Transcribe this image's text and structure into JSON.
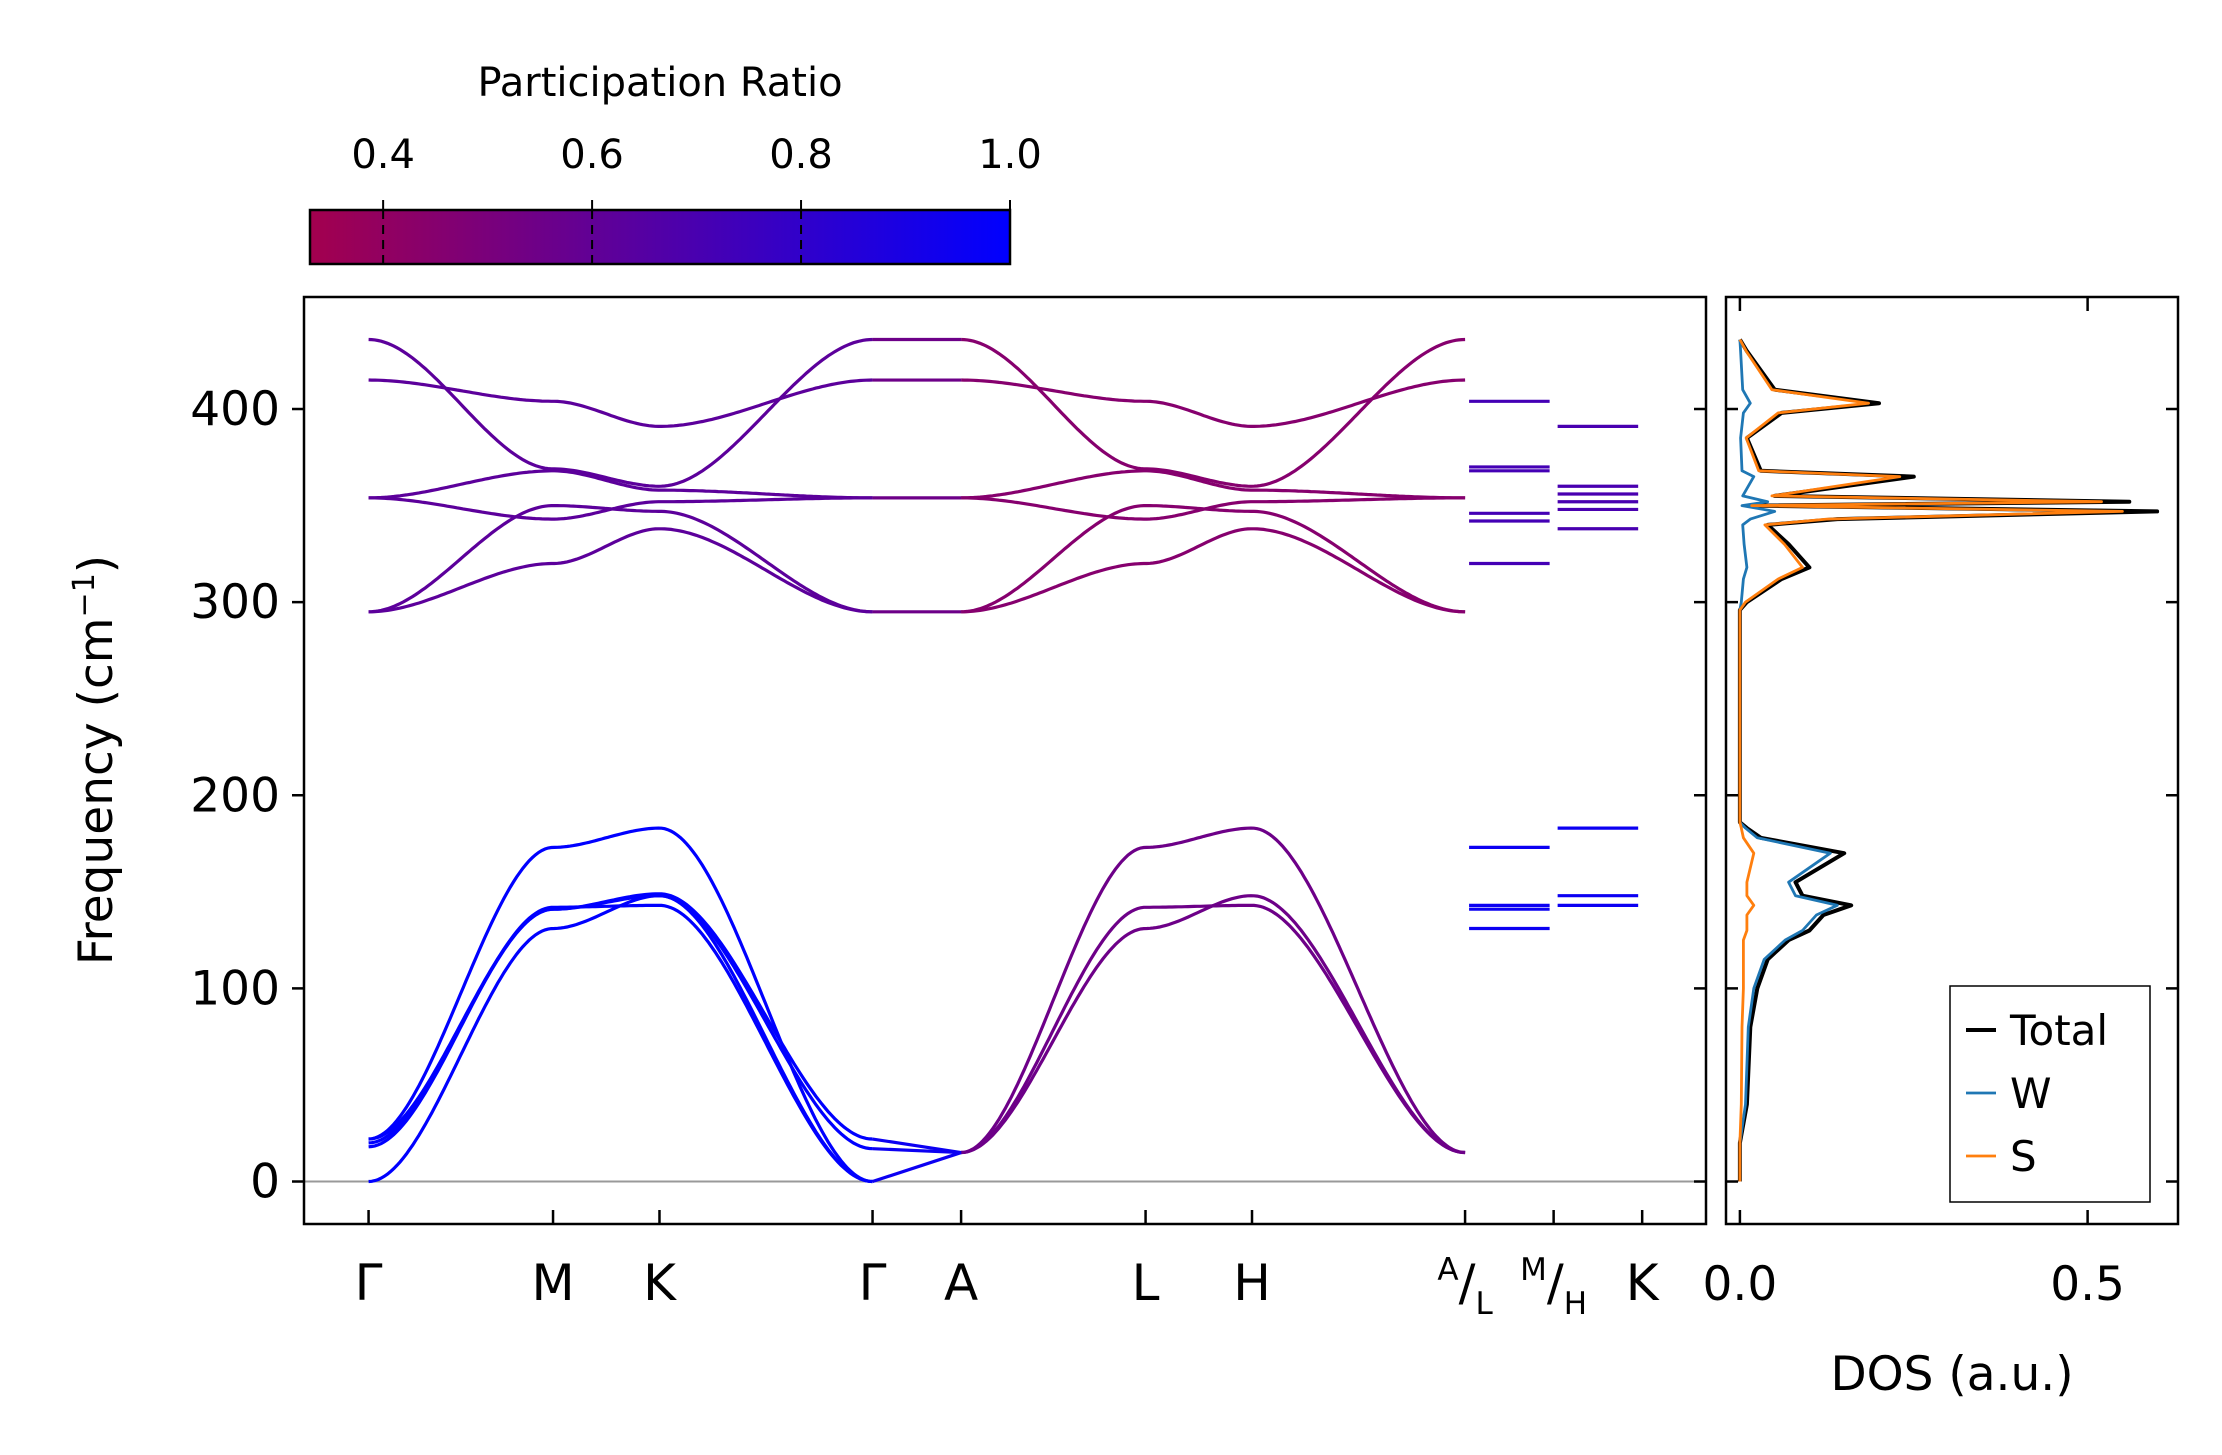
{
  "chart_data": [
    {
      "type": "line",
      "panel": "phonon-band-structure",
      "ylabel": "Frequency (cm",
      "ylabel_sup": "−1",
      "ylabel_close": ")",
      "ylim": [
        -22,
        458
      ],
      "yticks": [
        0,
        100,
        200,
        300,
        400
      ],
      "ytick_labels": [
        "0",
        "100",
        "200",
        "300",
        "400"
      ],
      "kpath": [
        {
          "label": "Γ",
          "x": 0.0
        },
        {
          "label": "M",
          "x": 1.0
        },
        {
          "label": "K",
          "x": 1.577
        },
        {
          "label": "Γ",
          "x": 2.732
        },
        {
          "label": "A",
          "x": 3.212
        },
        {
          "label": "L",
          "x": 4.212
        },
        {
          "label": "H",
          "x": 4.789
        },
        {
          "label": "A",
          "x": 5.944
        },
        {
          "label": "L",
          "x": 5.944
        },
        {
          "label": "M",
          "x": 6.424
        },
        {
          "label": "H",
          "x": 6.424
        },
        {
          "label": "K",
          "x": 6.904
        }
      ],
      "xlim": [
        -0.35,
        7.25
      ],
      "zero_line": 0,
      "bands_gamma_M_K_gamma": {
        "k": [
          0,
          1.0,
          1.577,
          2.732
        ],
        "acoustic": [
          [
            0,
            131,
            148,
            0
          ],
          [
            18,
            142,
            143,
            0
          ],
          [
            22,
            173,
            183,
            0
          ],
          [
            20,
            141,
            149,
            22
          ],
          [
            22,
            141,
            148,
            17
          ]
        ],
        "optical": [
          [
            295,
            320,
            338,
            295
          ],
          [
            295,
            350,
            347,
            295
          ],
          [
            354,
            343,
            352,
            354
          ],
          [
            354,
            368,
            358,
            354
          ],
          [
            436,
            369,
            360,
            436
          ],
          [
            415,
            404,
            391,
            415
          ]
        ]
      },
      "bands_A_L_H_A": {
        "k": [
          3.212,
          4.212,
          4.789,
          5.944
        ],
        "acoustic": [
          [
            15,
            131,
            148,
            15
          ],
          [
            15,
            142,
            143,
            15
          ],
          [
            15,
            173,
            183,
            15
          ]
        ],
        "optical": [
          [
            295,
            320,
            338,
            295
          ],
          [
            295,
            350,
            347,
            295
          ],
          [
            354,
            343,
            352,
            354
          ],
          [
            354,
            368,
            358,
            354
          ],
          [
            436,
            369,
            360,
            436
          ],
          [
            415,
            404,
            391,
            415
          ]
        ]
      },
      "segment_pr": {
        "gamma_M": {
          "acoustic": 1.0,
          "optical": 0.62
        },
        "A_L": {
          "acoustic": 0.55,
          "optical": 0.45
        }
      },
      "flat_bands": [
        {
          "x0": 5.944,
          "x1": 6.424,
          "values": [
            131,
            141,
            143,
            173,
            320,
            342,
            346,
            368,
            370,
            404
          ],
          "pr": 0.72
        },
        {
          "x0": 6.424,
          "x1": 6.904,
          "values": [
            143,
            148,
            183,
            338,
            348,
            352,
            356,
            360,
            391
          ],
          "pr": 0.7
        }
      ]
    },
    {
      "type": "line",
      "panel": "density-of-states",
      "xlabel": "DOS (a.u.)",
      "xlim": [
        -0.02,
        0.63
      ],
      "xticks": [
        0.0,
        0.5
      ],
      "xtick_labels": [
        "0.0",
        "0.5"
      ],
      "ylim": [
        -22,
        458
      ],
      "legend_position": "lower-right",
      "series": [
        {
          "name": "Total",
          "color": "#000000",
          "points": [
            [
              0.0,
              0
            ],
            [
              0.0,
              20
            ],
            [
              0.01,
              40
            ],
            [
              0.015,
              80
            ],
            [
              0.025,
              100
            ],
            [
              0.04,
              115
            ],
            [
              0.07,
              125
            ],
            [
              0.1,
              130
            ],
            [
              0.12,
              138
            ],
            [
              0.16,
              143
            ],
            [
              0.09,
              148
            ],
            [
              0.08,
              155
            ],
            [
              0.15,
              170
            ],
            [
              0.03,
              178
            ],
            [
              0.01,
              183
            ],
            [
              0.0,
              186
            ],
            [
              0.0,
              200
            ],
            [
              0.0,
              296
            ],
            [
              0.01,
              300
            ],
            [
              0.06,
              312
            ],
            [
              0.1,
              318
            ],
            [
              0.07,
              330
            ],
            [
              0.04,
              340
            ],
            [
              0.14,
              343
            ],
            [
              0.6,
              347
            ],
            [
              0.02,
              350
            ],
            [
              0.56,
              352
            ],
            [
              0.05,
              355
            ],
            [
              0.25,
              365
            ],
            [
              0.03,
              368
            ],
            [
              0.01,
              385
            ],
            [
              0.06,
              398
            ],
            [
              0.2,
              403
            ],
            [
              0.05,
              410
            ],
            [
              0.01,
              430
            ],
            [
              0.0,
              436
            ]
          ]
        },
        {
          "name": "W",
          "color": "#1f77b4",
          "points": [
            [
              0.0,
              0
            ],
            [
              0.0,
              20
            ],
            [
              0.008,
              40
            ],
            [
              0.012,
              80
            ],
            [
              0.02,
              100
            ],
            [
              0.035,
              115
            ],
            [
              0.065,
              125
            ],
            [
              0.09,
              130
            ],
            [
              0.11,
              138
            ],
            [
              0.14,
              143
            ],
            [
              0.08,
              148
            ],
            [
              0.07,
              155
            ],
            [
              0.13,
              170
            ],
            [
              0.025,
              178
            ],
            [
              0.008,
              183
            ],
            [
              0.0,
              186
            ],
            [
              0.0,
              200
            ],
            [
              0.0,
              296
            ],
            [
              0.002,
              300
            ],
            [
              0.005,
              312
            ],
            [
              0.01,
              318
            ],
            [
              0.006,
              330
            ],
            [
              0.004,
              340
            ],
            [
              0.015,
              343
            ],
            [
              0.05,
              347
            ],
            [
              0.003,
              350
            ],
            [
              0.04,
              352
            ],
            [
              0.004,
              355
            ],
            [
              0.02,
              365
            ],
            [
              0.003,
              368
            ],
            [
              0.001,
              385
            ],
            [
              0.005,
              398
            ],
            [
              0.015,
              403
            ],
            [
              0.004,
              410
            ],
            [
              0.001,
              430
            ],
            [
              0.0,
              436
            ]
          ]
        },
        {
          "name": "S",
          "color": "#ff7f0e",
          "points": [
            [
              0.0,
              0
            ],
            [
              0.0,
              20
            ],
            [
              0.002,
              40
            ],
            [
              0.003,
              80
            ],
            [
              0.005,
              100
            ],
            [
              0.005,
              115
            ],
            [
              0.005,
              125
            ],
            [
              0.01,
              130
            ],
            [
              0.01,
              138
            ],
            [
              0.02,
              143
            ],
            [
              0.01,
              148
            ],
            [
              0.01,
              155
            ],
            [
              0.02,
              170
            ],
            [
              0.005,
              178
            ],
            [
              0.002,
              183
            ],
            [
              0.0,
              186
            ],
            [
              0.0,
              200
            ],
            [
              0.0,
              296
            ],
            [
              0.008,
              300
            ],
            [
              0.055,
              312
            ],
            [
              0.09,
              318
            ],
            [
              0.064,
              330
            ],
            [
              0.036,
              340
            ],
            [
              0.125,
              343
            ],
            [
              0.55,
              347
            ],
            [
              0.017,
              350
            ],
            [
              0.52,
              352
            ],
            [
              0.046,
              355
            ],
            [
              0.23,
              365
            ],
            [
              0.027,
              368
            ],
            [
              0.009,
              385
            ],
            [
              0.055,
              398
            ],
            [
              0.185,
              403
            ],
            [
              0.046,
              410
            ],
            [
              0.009,
              430
            ],
            [
              0.0,
              436
            ]
          ]
        }
      ]
    }
  ],
  "colorbar": {
    "title": "Participation Ratio",
    "range": [
      0.33,
      1.0
    ],
    "ticks": [
      0.4,
      0.6,
      0.8,
      1.0
    ],
    "tick_labels": [
      "0.4",
      "0.6",
      "0.8",
      "1.0"
    ],
    "colors": {
      "low": "#a3004e",
      "high": "#0000ff"
    }
  }
}
